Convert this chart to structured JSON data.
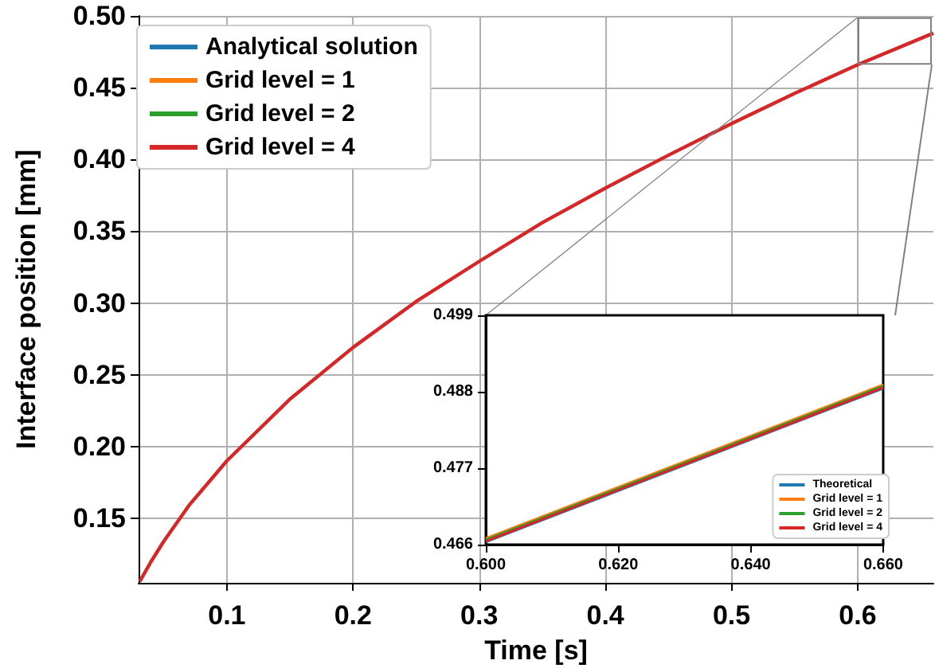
{
  "chart_data": [
    {
      "type": "line",
      "xlabel": "Time [s]",
      "ylabel": "Interface position [mm]",
      "xlim": [
        0.03,
        0.66
      ],
      "ylim": [
        0.105,
        0.5
      ],
      "xticks": [
        0.1,
        0.2,
        0.3,
        0.4,
        0.5,
        0.6
      ],
      "yticks": [
        {
          "value": 0.15,
          "label": "0.15"
        },
        {
          "value": 0.2,
          "label": "0.20"
        },
        {
          "value": 0.25,
          "label": "0.25"
        },
        {
          "value": 0.3,
          "label": "0.30"
        },
        {
          "value": 0.35,
          "label": "0.35"
        },
        {
          "value": 0.4,
          "label": "0.40"
        },
        {
          "value": 0.45,
          "label": "0.45"
        },
        {
          "value": 0.5,
          "label": "0.50"
        }
      ],
      "grid": true,
      "legend": "top left",
      "marker": "none",
      "x": [
        0.031,
        0.04,
        0.05,
        0.07,
        0.1,
        0.15,
        0.2,
        0.25,
        0.3,
        0.35,
        0.4,
        0.45,
        0.5,
        0.55,
        0.6,
        0.66
      ],
      "series": [
        {
          "name": "Analytical solution",
          "color": "#1f77b4",
          "values": [
            null,
            null,
            null,
            null,
            null,
            null,
            null,
            null,
            null,
            null,
            null,
            null,
            null,
            null,
            null,
            null
          ]
        },
        {
          "name": "Grid level = 1",
          "color": "#ff7f0e",
          "values": [
            null,
            null,
            null,
            null,
            null,
            null,
            null,
            null,
            null,
            null,
            null,
            null,
            null,
            null,
            null,
            null
          ]
        },
        {
          "name": "Grid level = 2",
          "color": "#2ca02c",
          "values": [
            null,
            null,
            null,
            null,
            null,
            null,
            null,
            null,
            null,
            null,
            null,
            null,
            null,
            null,
            null,
            null
          ]
        },
        {
          "name": "Grid level = 4",
          "color": "#d62728",
          "values": [
            0.106,
            0.12,
            0.134,
            0.159,
            0.19,
            0.233,
            0.269,
            0.301,
            0.329,
            0.356,
            0.38,
            0.403,
            0.425,
            0.446,
            0.466,
            0.488
          ]
        }
      ]
    },
    {
      "type": "line",
      "xlim": [
        0.6,
        0.66
      ],
      "ylim": [
        0.466,
        0.499
      ],
      "xticks": [
        {
          "value": 0.6,
          "label": "0.600"
        },
        {
          "value": 0.62,
          "label": "0.620"
        },
        {
          "value": 0.64,
          "label": "0.640"
        },
        {
          "value": 0.66,
          "label": "0.660"
        }
      ],
      "yticks": [
        0.466,
        0.477,
        0.488,
        0.499
      ],
      "grid": false,
      "legend": "bottom right",
      "marker": "none",
      "x": [
        0.6,
        0.66
      ],
      "series": [
        {
          "name": "Theoretical",
          "color": "#1f77b4",
          "values": [
            0.4664,
            0.4885
          ]
        },
        {
          "name": "Grid level = 1",
          "color": "#ff7f0e",
          "values": [
            0.4669,
            0.489
          ]
        },
        {
          "name": "Grid level = 2",
          "color": "#2ca02c",
          "values": [
            0.4667,
            0.4888
          ]
        },
        {
          "name": "Grid level = 4",
          "color": "#d62728",
          "values": [
            0.4665,
            0.4886
          ]
        }
      ]
    }
  ]
}
